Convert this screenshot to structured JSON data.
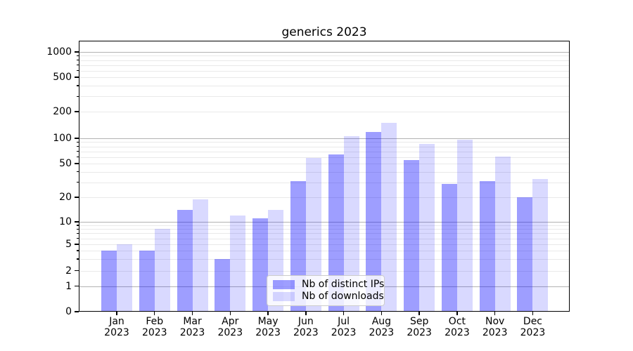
{
  "chart_data": {
    "type": "bar",
    "title": "generics 2023",
    "categories": [
      "Jan",
      "Feb",
      "Mar",
      "Apr",
      "May",
      "Jun",
      "Jul",
      "Aug",
      "Sep",
      "Oct",
      "Nov",
      "Dec"
    ],
    "x_year": "2023",
    "series": [
      {
        "name": "Nb of distinct IPs",
        "color": "#9e9eff",
        "alpha": 0.38,
        "values": [
          4,
          4,
          14,
          3,
          11,
          31,
          64,
          117,
          55,
          29,
          31,
          20
        ]
      },
      {
        "name": "Nb of downloads",
        "color": "#d9d9ff",
        "alpha": 0.15,
        "values": [
          5,
          8,
          19,
          12,
          14,
          58,
          106,
          150,
          85,
          96,
          61,
          33
        ]
      }
    ],
    "yscale": "asinh-symlog",
    "y_ticks": [
      0,
      1,
      2,
      5,
      10,
      20,
      50,
      100,
      200,
      500,
      1000
    ],
    "ylim": [
      0,
      1400
    ],
    "grid": true,
    "legend_position": "lower center",
    "colors": {
      "bar_base": "#0000ff",
      "major_grid": "#b3b3b3",
      "minor_grid": "#e9e9e9",
      "axis": "#000000",
      "legend_border": "#cccccc",
      "text": "#000000"
    }
  }
}
